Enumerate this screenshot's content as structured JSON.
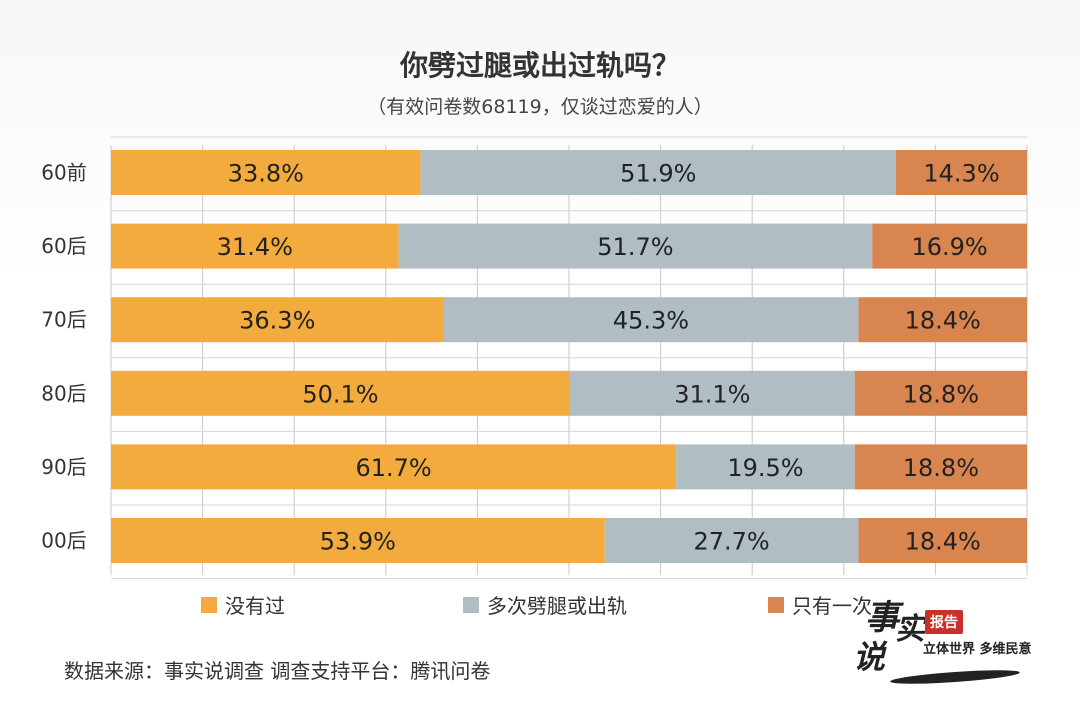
{
  "chart_data": {
    "type": "bar",
    "orientation": "horizontal-stacked-100",
    "title": "你劈过腿或出过轨吗？",
    "subtitle": "（有效问卷数68119，仅谈过恋爱的人）",
    "categories": [
      "60前",
      "60后",
      "70后",
      "80后",
      "90后",
      "00后"
    ],
    "series": [
      {
        "name": "没有过",
        "color": "#f4ab3d",
        "values": [
          33.8,
          31.4,
          36.3,
          50.1,
          61.7,
          53.9
        ],
        "labels": [
          "33.8%",
          "31.4%",
          "36.3%",
          "50.1%",
          "61.7%",
          "53.9%"
        ]
      },
      {
        "name": "多次劈腿或出轨",
        "color": "#b0bec4",
        "values": [
          51.9,
          51.7,
          45.3,
          31.1,
          19.5,
          27.7
        ],
        "labels": [
          "51.9%",
          "51.7%",
          "45.3%",
          "31.1%",
          "19.5%",
          "27.7%"
        ]
      },
      {
        "name": "只有一次",
        "color": "#d98550",
        "values": [
          14.3,
          16.9,
          18.4,
          18.8,
          18.8,
          18.4
        ],
        "labels": [
          "14.3%",
          "16.9%",
          "18.4%",
          "18.8%",
          "18.8%",
          "18.4%"
        ]
      }
    ],
    "xlim": [
      0,
      100
    ],
    "grid": true,
    "legend_position": "bottom"
  },
  "footer": "数据来源：事实说调查  调查支持平台：腾讯问卷",
  "logo": {
    "char1": "事",
    "char2": "实",
    "char3": "说",
    "badge": "报告",
    "slogan": "立体世界 多维民意"
  }
}
